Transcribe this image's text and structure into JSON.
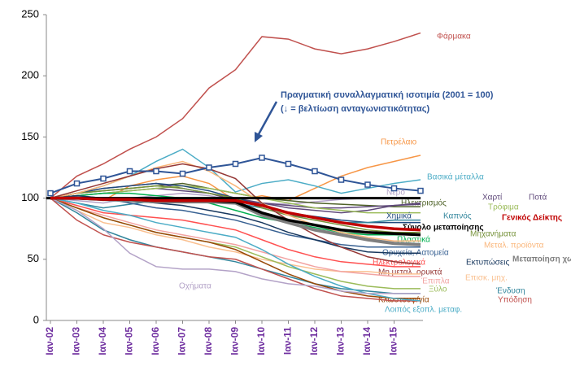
{
  "chart_data": {
    "type": "line",
    "annotation": [
      "Πραγματική συναλλαγματική ισοτιμία (2001 = 100)",
      "(↓ = βελτίωση ανταγωνιστικότητας)"
    ],
    "categories": [
      "Ιαν-02",
      "Ιαν-03",
      "Ιαν-04",
      "Ιαν-05",
      "Ιαν-06",
      "Ιαν-07",
      "Ιαν-08",
      "Ιαν-09",
      "Ιαν-10",
      "Ιαν-11",
      "Ιαν-12",
      "Ιαν-13",
      "Ιαν-14",
      "Ιαν-15",
      null
    ],
    "ylim": [
      0,
      250
    ],
    "yticks": [
      0,
      50,
      100,
      150,
      200,
      250
    ],
    "grid": false,
    "reference_line": 100,
    "series": [
      {
        "name": "Φάρμακα",
        "color": "#c0504d",
        "values": [
          100,
          118,
          128,
          140,
          150,
          165,
          190,
          205,
          232,
          230,
          222,
          218,
          222,
          228,
          235
        ]
      },
      {
        "name": "Πετρέλαιο",
        "color": "#f79646",
        "values": [
          100,
          102,
          98,
          110,
          115,
          118,
          112,
          98,
          102,
          98,
          108,
          118,
          125,
          130,
          135
        ]
      },
      {
        "name": "Βασικά μέταλλα",
        "color": "#4bacc6",
        "values": [
          100,
          104,
          110,
          118,
          130,
          140,
          125,
          105,
          112,
          115,
          110,
          104,
          108,
          112,
          115
        ]
      },
      {
        "name": "Νερό",
        "color": "#b3a2c7",
        "values": [
          100,
          98,
          96,
          100,
          102,
          104,
          102,
          98,
          96,
          95,
          97,
          99,
          100,
          100,
          100
        ]
      },
      {
        "name": "Ηλεκτρισμός",
        "color": "#4f6228",
        "values": [
          100,
          104,
          106,
          108,
          110,
          112,
          108,
          104,
          100,
          98,
          96,
          95,
          94,
          93,
          93
        ]
      },
      {
        "name": "Χαρτί",
        "color": "#5f497a",
        "values": [
          100,
          102,
          104,
          106,
          108,
          106,
          104,
          100,
          96,
          94,
          92,
          92,
          93,
          94,
          95
        ]
      },
      {
        "name": "Ποτά",
        "color": "#604a7b",
        "values": [
          100,
          104,
          108,
          110,
          112,
          108,
          104,
          98,
          96,
          92,
          90,
          88,
          90,
          94,
          96
        ]
      },
      {
        "name": "Τρόφιμα",
        "color": "#9bbb59",
        "values": [
          100,
          102,
          104,
          106,
          108,
          110,
          108,
          104,
          100,
          96,
          92,
          90,
          88,
          88,
          88
        ]
      },
      {
        "name": "Χημικά",
        "color": "#1f497d",
        "values": [
          100,
          104,
          108,
          110,
          112,
          110,
          106,
          100,
          94,
          88,
          85,
          82,
          80,
          80,
          80
        ]
      },
      {
        "name": "Καπνός",
        "color": "#31859c",
        "values": [
          100,
          96,
          92,
          95,
          98,
          100,
          98,
          96,
          92,
          86,
          84,
          80,
          80,
          82,
          82
        ]
      },
      {
        "name": "Μηχανήματα",
        "color": "#77933c",
        "values": [
          100,
          104,
          106,
          108,
          110,
          108,
          104,
          100,
          92,
          86,
          82,
          78,
          74,
          72,
          72
        ]
      },
      {
        "name": "Πλαστικά",
        "color": "#00b050",
        "values": [
          100,
          102,
          104,
          104,
          102,
          100,
          96,
          90,
          84,
          80,
          76,
          72,
          70,
          70,
          70
        ]
      },
      {
        "name": "Μεταλ. προϊόντα",
        "color": "#fab67a",
        "values": [
          100,
          104,
          110,
          118,
          125,
          130,
          122,
          110,
          96,
          86,
          78,
          72,
          68,
          65,
          65
        ]
      },
      {
        "name": "Ορυχεία, Λατομεία",
        "color": "#376092",
        "values": [
          100,
          102,
          100,
          96,
          92,
          90,
          86,
          82,
          76,
          70,
          66,
          62,
          60,
          60,
          60
        ]
      },
      {
        "name": "Ηλεκτρολογικά",
        "color": "#ff5050",
        "values": [
          100,
          94,
          88,
          86,
          84,
          82,
          78,
          74,
          66,
          58,
          52,
          48,
          46,
          44,
          44
        ]
      },
      {
        "name": "Εκτυπώσεις",
        "color": "#17375e",
        "values": [
          100,
          102,
          100,
          98,
          96,
          94,
          90,
          86,
          80,
          72,
          66,
          60,
          56,
          55,
          55
        ]
      },
      {
        "name": "Μη μεταλ. ορυκτά",
        "color": "#953735",
        "values": [
          100,
          106,
          112,
          118,
          124,
          128,
          124,
          116,
          96,
          82,
          70,
          60,
          52,
          48,
          46
        ]
      },
      {
        "name": "Επισκ. μηχ.",
        "color": "#fac090",
        "values": [
          100,
          90,
          80,
          76,
          70,
          66,
          60,
          56,
          50,
          46,
          42,
          40,
          40,
          38,
          38
        ]
      },
      {
        "name": "Έπιπλα",
        "color": "#f2a3a2",
        "values": [
          100,
          92,
          86,
          80,
          74,
          70,
          66,
          62,
          56,
          50,
          44,
          40,
          38,
          36,
          36
        ]
      },
      {
        "name": "Ξύλο",
        "color": "#9bbb59",
        "values": [
          100,
          92,
          84,
          78,
          72,
          68,
          64,
          60,
          52,
          44,
          38,
          32,
          28,
          26,
          26
        ]
      },
      {
        "name": "Ένδυση",
        "color": "#31859c",
        "values": [
          100,
          88,
          74,
          66,
          60,
          56,
          52,
          48,
          42,
          36,
          30,
          26,
          24,
          22,
          22
        ]
      },
      {
        "name": "Κλωστουφ/γία",
        "color": "#984807",
        "values": [
          100,
          92,
          84,
          78,
          72,
          68,
          64,
          58,
          48,
          38,
          30,
          24,
          20,
          18,
          18
        ]
      },
      {
        "name": "Υπόδηση",
        "color": "#c0504d",
        "values": [
          100,
          82,
          70,
          64,
          60,
          56,
          52,
          50,
          42,
          34,
          26,
          20,
          18,
          16,
          16
        ]
      },
      {
        "name": "Λοιπός εξοπλ. μεταφ.",
        "color": "#4bacc6",
        "values": [
          100,
          96,
          90,
          86,
          80,
          76,
          72,
          68,
          58,
          46,
          36,
          28,
          22,
          18,
          16
        ]
      },
      {
        "name": "Οχήματα",
        "color": "#b3a2c7",
        "values": [
          100,
          90,
          75,
          55,
          44,
          42,
          42,
          40,
          34,
          30,
          28,
          24,
          22,
          22,
          22
        ]
      },
      {
        "name": "Μεταποίηση χωρίς πετρ.",
        "color": "#7f7f7f",
        "values": [
          100,
          100,
          99,
          98,
          97,
          97,
          97,
          96,
          86,
          80,
          74,
          70,
          66,
          63,
          62
        ]
      },
      {
        "name": "Σύνολο μεταποίησης",
        "color": "#000000",
        "values": [
          100,
          100,
          99,
          99,
          98,
          98,
          98,
          97,
          88,
          82,
          78,
          74,
          72,
          71,
          70
        ]
      },
      {
        "name": "Γενικός Δείκτης",
        "color": "#c00000",
        "values": [
          100,
          100,
          99,
          99,
          98,
          98,
          98,
          98,
          94,
          88,
          84,
          80,
          77,
          75,
          74
        ]
      },
      {
        "name": "Πραγματική συναλλαγματική ισοτιμία",
        "color": "#2f5597",
        "values": [
          104,
          112,
          116,
          122,
          122,
          120,
          125,
          128,
          133,
          128,
          122,
          115,
          111,
          108,
          106
        ]
      }
    ]
  }
}
